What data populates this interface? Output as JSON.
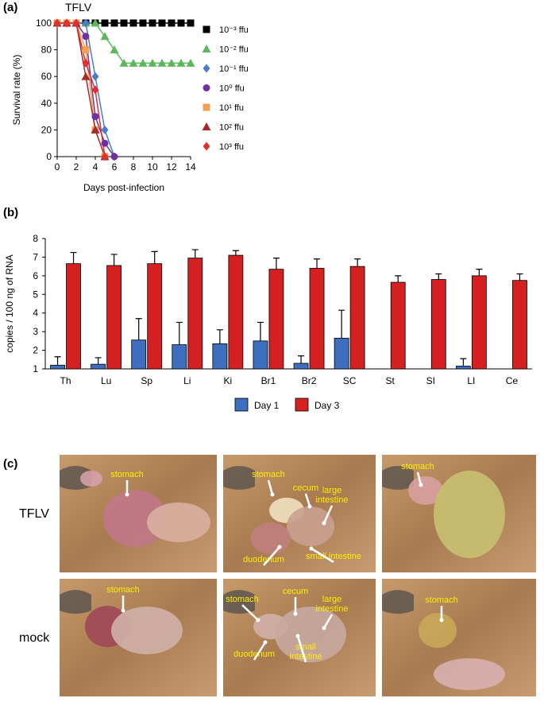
{
  "chart_data": [
    {
      "type": "line",
      "panel_label": "(a)",
      "title": "TFLV",
      "xlabel": "Days post-infection",
      "ylabel": "Survival rate (%)",
      "x": [
        0,
        1,
        2,
        3,
        4,
        5,
        6,
        7,
        8,
        9,
        10,
        11,
        12,
        13,
        14
      ],
      "xlim": [
        0,
        14
      ],
      "xticks": [
        0,
        2,
        4,
        6,
        8,
        10,
        12,
        14
      ],
      "ylim": [
        0,
        100
      ],
      "yticks": [
        0,
        20,
        40,
        60,
        80,
        100
      ],
      "series": [
        {
          "name": "10⁻³ ffu",
          "color": "#000000",
          "marker": "square",
          "values": [
            100,
            100,
            100,
            100,
            100,
            100,
            100,
            100,
            100,
            100,
            100,
            100,
            100,
            100,
            100
          ]
        },
        {
          "name": "10⁻² ffu",
          "color": "#5cb85c",
          "marker": "triangle",
          "values": [
            100,
            100,
            100,
            100,
            100,
            90,
            80,
            70,
            70,
            70,
            70,
            70,
            70,
            70,
            70
          ]
        },
        {
          "name": "10⁻¹ ffu",
          "color": "#4a7cc9",
          "marker": "diamond",
          "values": [
            100,
            100,
            100,
            100,
            60,
            20,
            0,
            null,
            null,
            null,
            null,
            null,
            null,
            null,
            null
          ]
        },
        {
          "name": "10⁰ ffu",
          "color": "#7030a0",
          "marker": "circle",
          "values": [
            100,
            100,
            100,
            90,
            30,
            10,
            0,
            null,
            null,
            null,
            null,
            null,
            null,
            null,
            null
          ]
        },
        {
          "name": "10¹ ffu",
          "color": "#f0a050",
          "marker": "square",
          "values": [
            100,
            100,
            100,
            80,
            20,
            0,
            null,
            null,
            null,
            null,
            null,
            null,
            null,
            null,
            null
          ]
        },
        {
          "name": "10² ffu",
          "color": "#a52a2a",
          "marker": "triangle",
          "values": [
            100,
            100,
            100,
            60,
            20,
            0,
            null,
            null,
            null,
            null,
            null,
            null,
            null,
            null,
            null
          ]
        },
        {
          "name": "10³ ffu",
          "color": "#e03030",
          "marker": "diamond",
          "values": [
            100,
            100,
            100,
            70,
            50,
            0,
            null,
            null,
            null,
            null,
            null,
            null,
            null,
            null,
            null
          ]
        }
      ]
    },
    {
      "type": "bar",
      "panel_label": "(b)",
      "ylabel": "copies / 100 ng of RNA",
      "categories": [
        "Th",
        "Lu",
        "Sp",
        "Li",
        "Ki",
        "Br1",
        "Br2",
        "SC",
        "St",
        "SI",
        "LI",
        "Ce"
      ],
      "ylim": [
        1,
        8
      ],
      "yticks": [
        1,
        2,
        3,
        4,
        5,
        6,
        7,
        8
      ],
      "series": [
        {
          "name": "Day 1",
          "color": "#3e6fbf",
          "values": [
            1.2,
            1.25,
            2.55,
            2.3,
            2.35,
            2.5,
            1.3,
            2.65,
            null,
            null,
            1.15,
            null
          ],
          "errors": [
            0.45,
            0.35,
            1.15,
            1.2,
            0.75,
            1.0,
            0.4,
            1.5,
            null,
            null,
            0.4,
            null
          ]
        },
        {
          "name": "Day 3",
          "color": "#d42020",
          "values": [
            6.65,
            6.55,
            6.65,
            6.95,
            7.1,
            6.35,
            6.4,
            6.5,
            5.65,
            5.8,
            6.0,
            5.75
          ],
          "errors": [
            0.6,
            0.6,
            0.65,
            0.45,
            0.25,
            0.6,
            0.5,
            0.4,
            0.35,
            0.3,
            0.35,
            0.35
          ]
        }
      ]
    }
  ],
  "photos": {
    "panel_label": "(c)",
    "rows": [
      "TFLV",
      "mock"
    ],
    "images": [
      [
        {
          "labels": [
            {
              "lines": [
                "stomach"
              ]
            }
          ]
        },
        {
          "labels": [
            {
              "lines": [
                "stomach"
              ]
            },
            {
              "lines": [
                "cecum"
              ]
            },
            {
              "lines": [
                "large",
                "intestine"
              ]
            },
            {
              "lines": [
                "duodenum"
              ]
            },
            {
              "lines": [
                "small intestine"
              ]
            }
          ]
        },
        {
          "labels": [
            {
              "lines": [
                "stomach"
              ]
            }
          ]
        }
      ],
      [
        {
          "labels": [
            {
              "lines": [
                "stomach"
              ]
            }
          ]
        },
        {
          "labels": [
            {
              "lines": [
                "stomach"
              ]
            },
            {
              "lines": [
                "cecum"
              ]
            },
            {
              "lines": [
                "large",
                "intestine"
              ]
            },
            {
              "lines": [
                "duodenum"
              ]
            },
            {
              "lines": [
                "small",
                "intestine"
              ]
            }
          ]
        },
        {
          "labels": [
            {
              "lines": [
                "stomach"
              ]
            }
          ]
        }
      ]
    ]
  }
}
